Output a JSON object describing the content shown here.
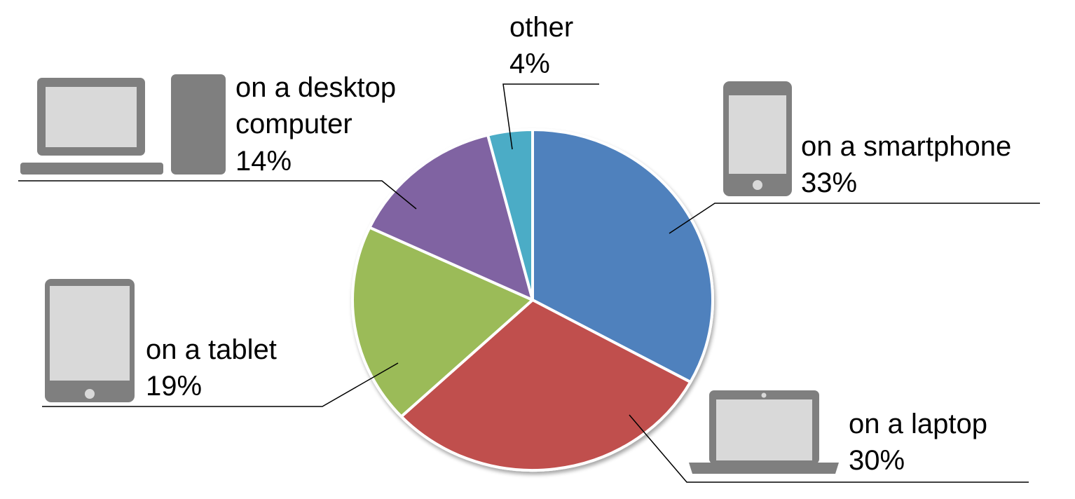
{
  "chart_data": {
    "type": "pie",
    "title": "",
    "slices": [
      {
        "label": "on a smartphone",
        "value": 33,
        "display": "33%",
        "color": "#4F81BD",
        "icon": "smartphone-icon"
      },
      {
        "label": "on a laptop",
        "value": 30,
        "display": "30%",
        "color": "#C0504D",
        "icon": "laptop-icon"
      },
      {
        "label": "on a tablet",
        "value": 19,
        "display": "19%",
        "color": "#9BBB59",
        "icon": "tablet-icon"
      },
      {
        "label": "on a desktop computer",
        "value": 14,
        "display": "14%",
        "color": "#8064A2",
        "icon": "desktop-computer-icon"
      },
      {
        "label": "other",
        "value": 4,
        "display": "4%",
        "color": "#4BACC6",
        "icon": ""
      }
    ],
    "start": "12 o'clock",
    "direction": "clockwise",
    "legend": "none"
  },
  "labels": {
    "smartphone": {
      "line1": "on a smartphone",
      "pct": "33%"
    },
    "laptop": {
      "line1": "on a laptop",
      "pct": "30%"
    },
    "tablet": {
      "line1": "on a tablet",
      "pct": "19%"
    },
    "desktop": {
      "line1": "on a desktop",
      "line2": "computer",
      "pct": "14%"
    },
    "other": {
      "line1": "other",
      "pct": "4%"
    }
  }
}
